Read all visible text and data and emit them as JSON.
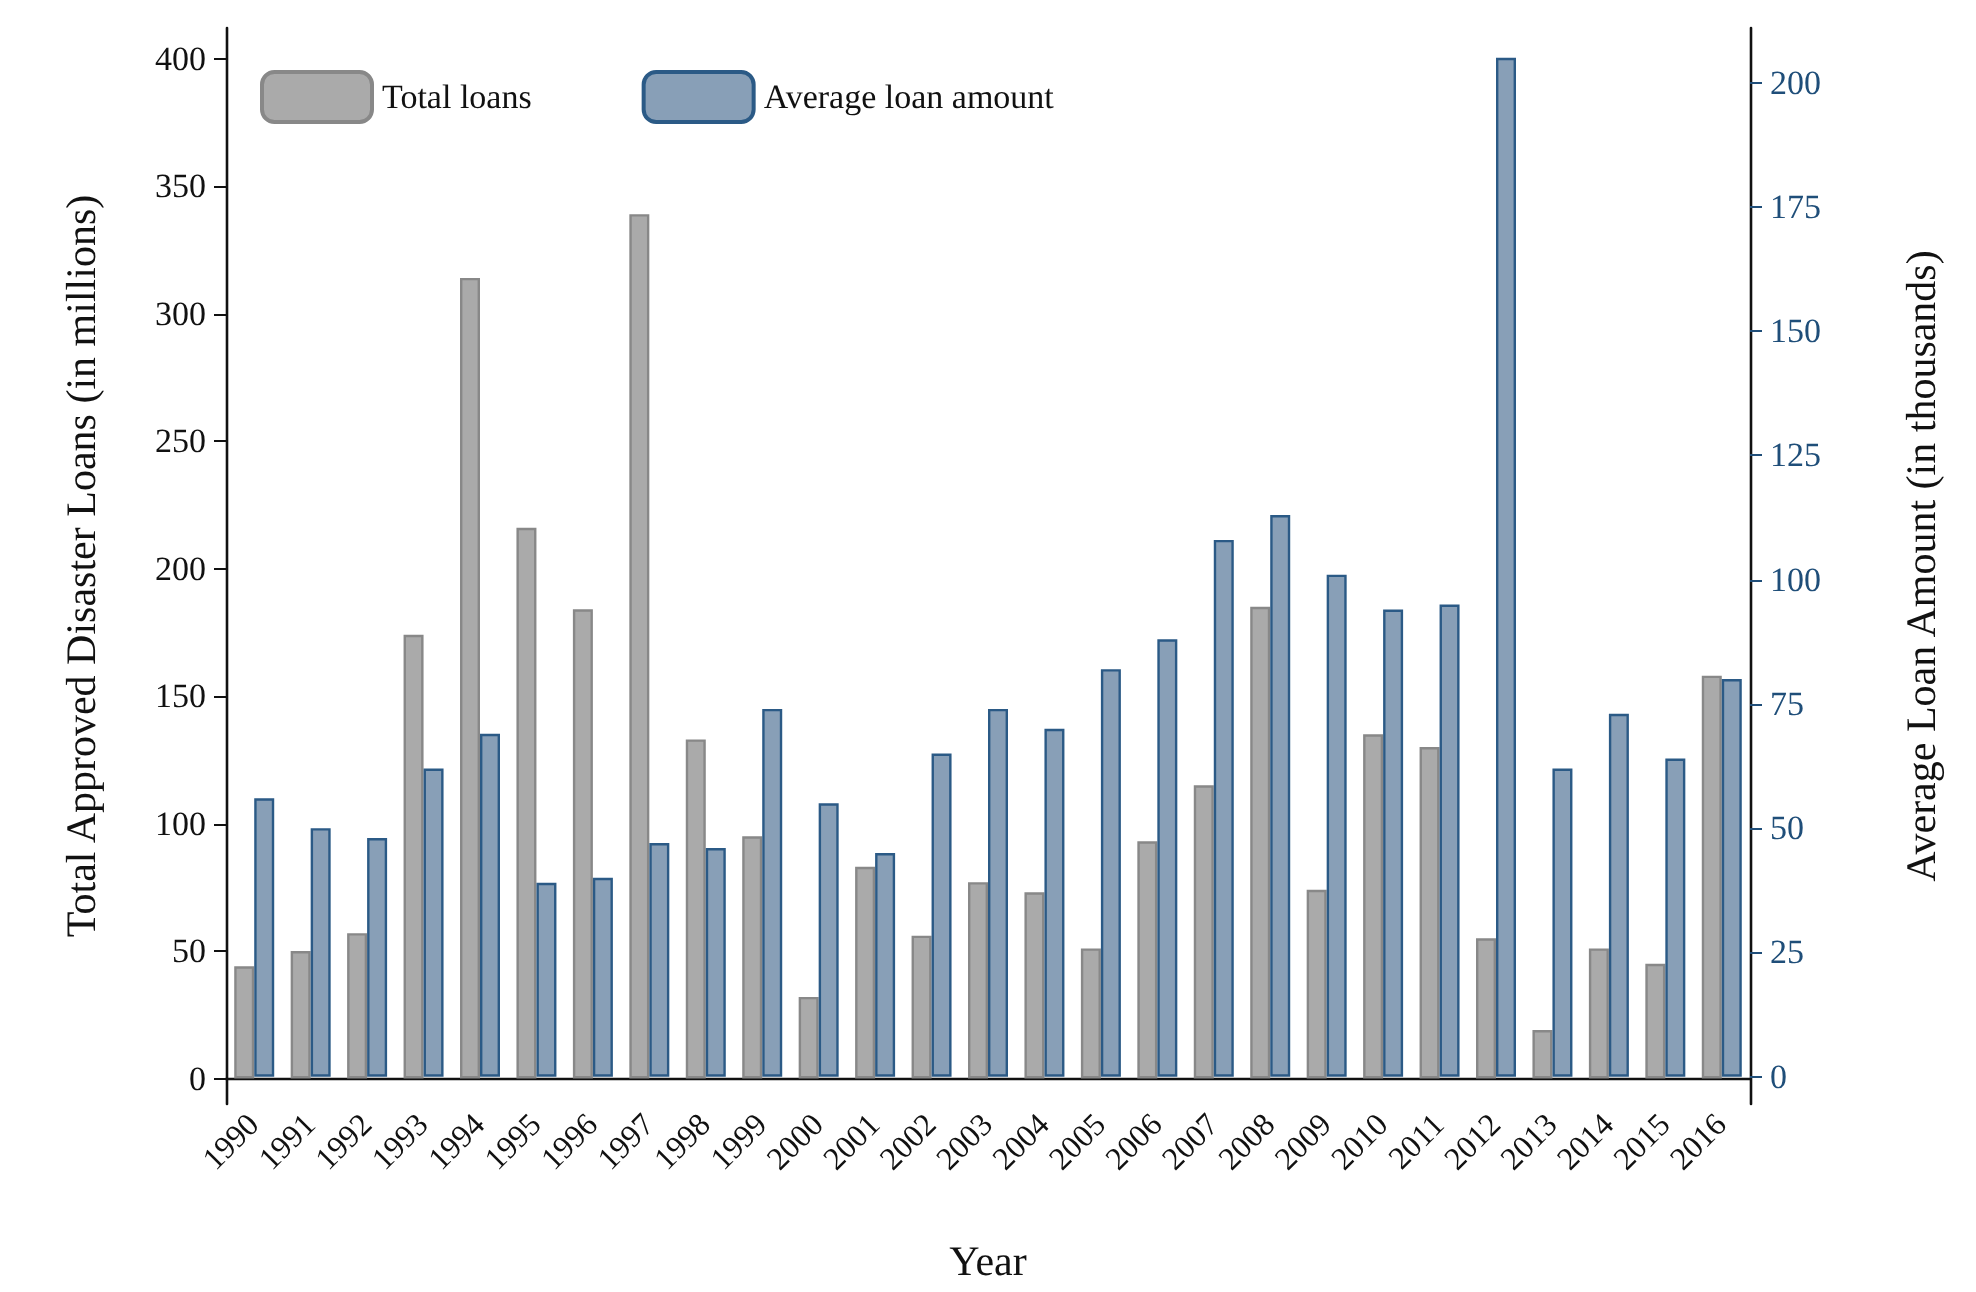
{
  "chart_data": {
    "type": "bar",
    "xlabel": "Year",
    "ylabel": "Total Approved Disaster Loans (in millions)",
    "y2label": "Average Loan Amount (in thousands)",
    "categories": [
      "1990",
      "1991",
      "1992",
      "1993",
      "1994",
      "1995",
      "1996",
      "1997",
      "1998",
      "1999",
      "2000",
      "2001",
      "2002",
      "2003",
      "2004",
      "2005",
      "2006",
      "2007",
      "2008",
      "2009",
      "2010",
      "2011",
      "2012",
      "2013",
      "2014",
      "2015",
      "2016"
    ],
    "series": [
      {
        "name": "Total loans",
        "color": "#aaaaaa",
        "values": [
          44,
          50,
          57,
          174,
          314,
          216,
          184,
          339,
          133,
          95,
          32,
          83,
          56,
          77,
          73,
          51,
          93,
          115,
          185,
          74,
          135,
          130,
          55,
          19,
          51,
          45,
          158
        ]
      },
      {
        "name": "Average loan amount",
        "color": "#889fb7",
        "axis": "y2",
        "values": [
          56,
          50,
          48,
          62,
          69,
          39,
          40,
          47,
          46,
          74,
          55,
          45,
          65,
          74,
          70,
          82,
          88,
          108,
          113,
          101,
          94,
          95,
          205,
          62,
          73,
          64,
          80
        ]
      }
    ],
    "ylim": [
      -10,
      412
    ],
    "yticks": [
      0,
      50,
      100,
      150,
      200,
      250,
      300,
      350,
      400
    ],
    "y2lim": [
      -5.5,
      211
    ],
    "y2ticks": [
      0,
      25,
      50,
      75,
      100,
      125,
      150,
      175,
      200
    ],
    "legend": "top left",
    "grid": false
  }
}
